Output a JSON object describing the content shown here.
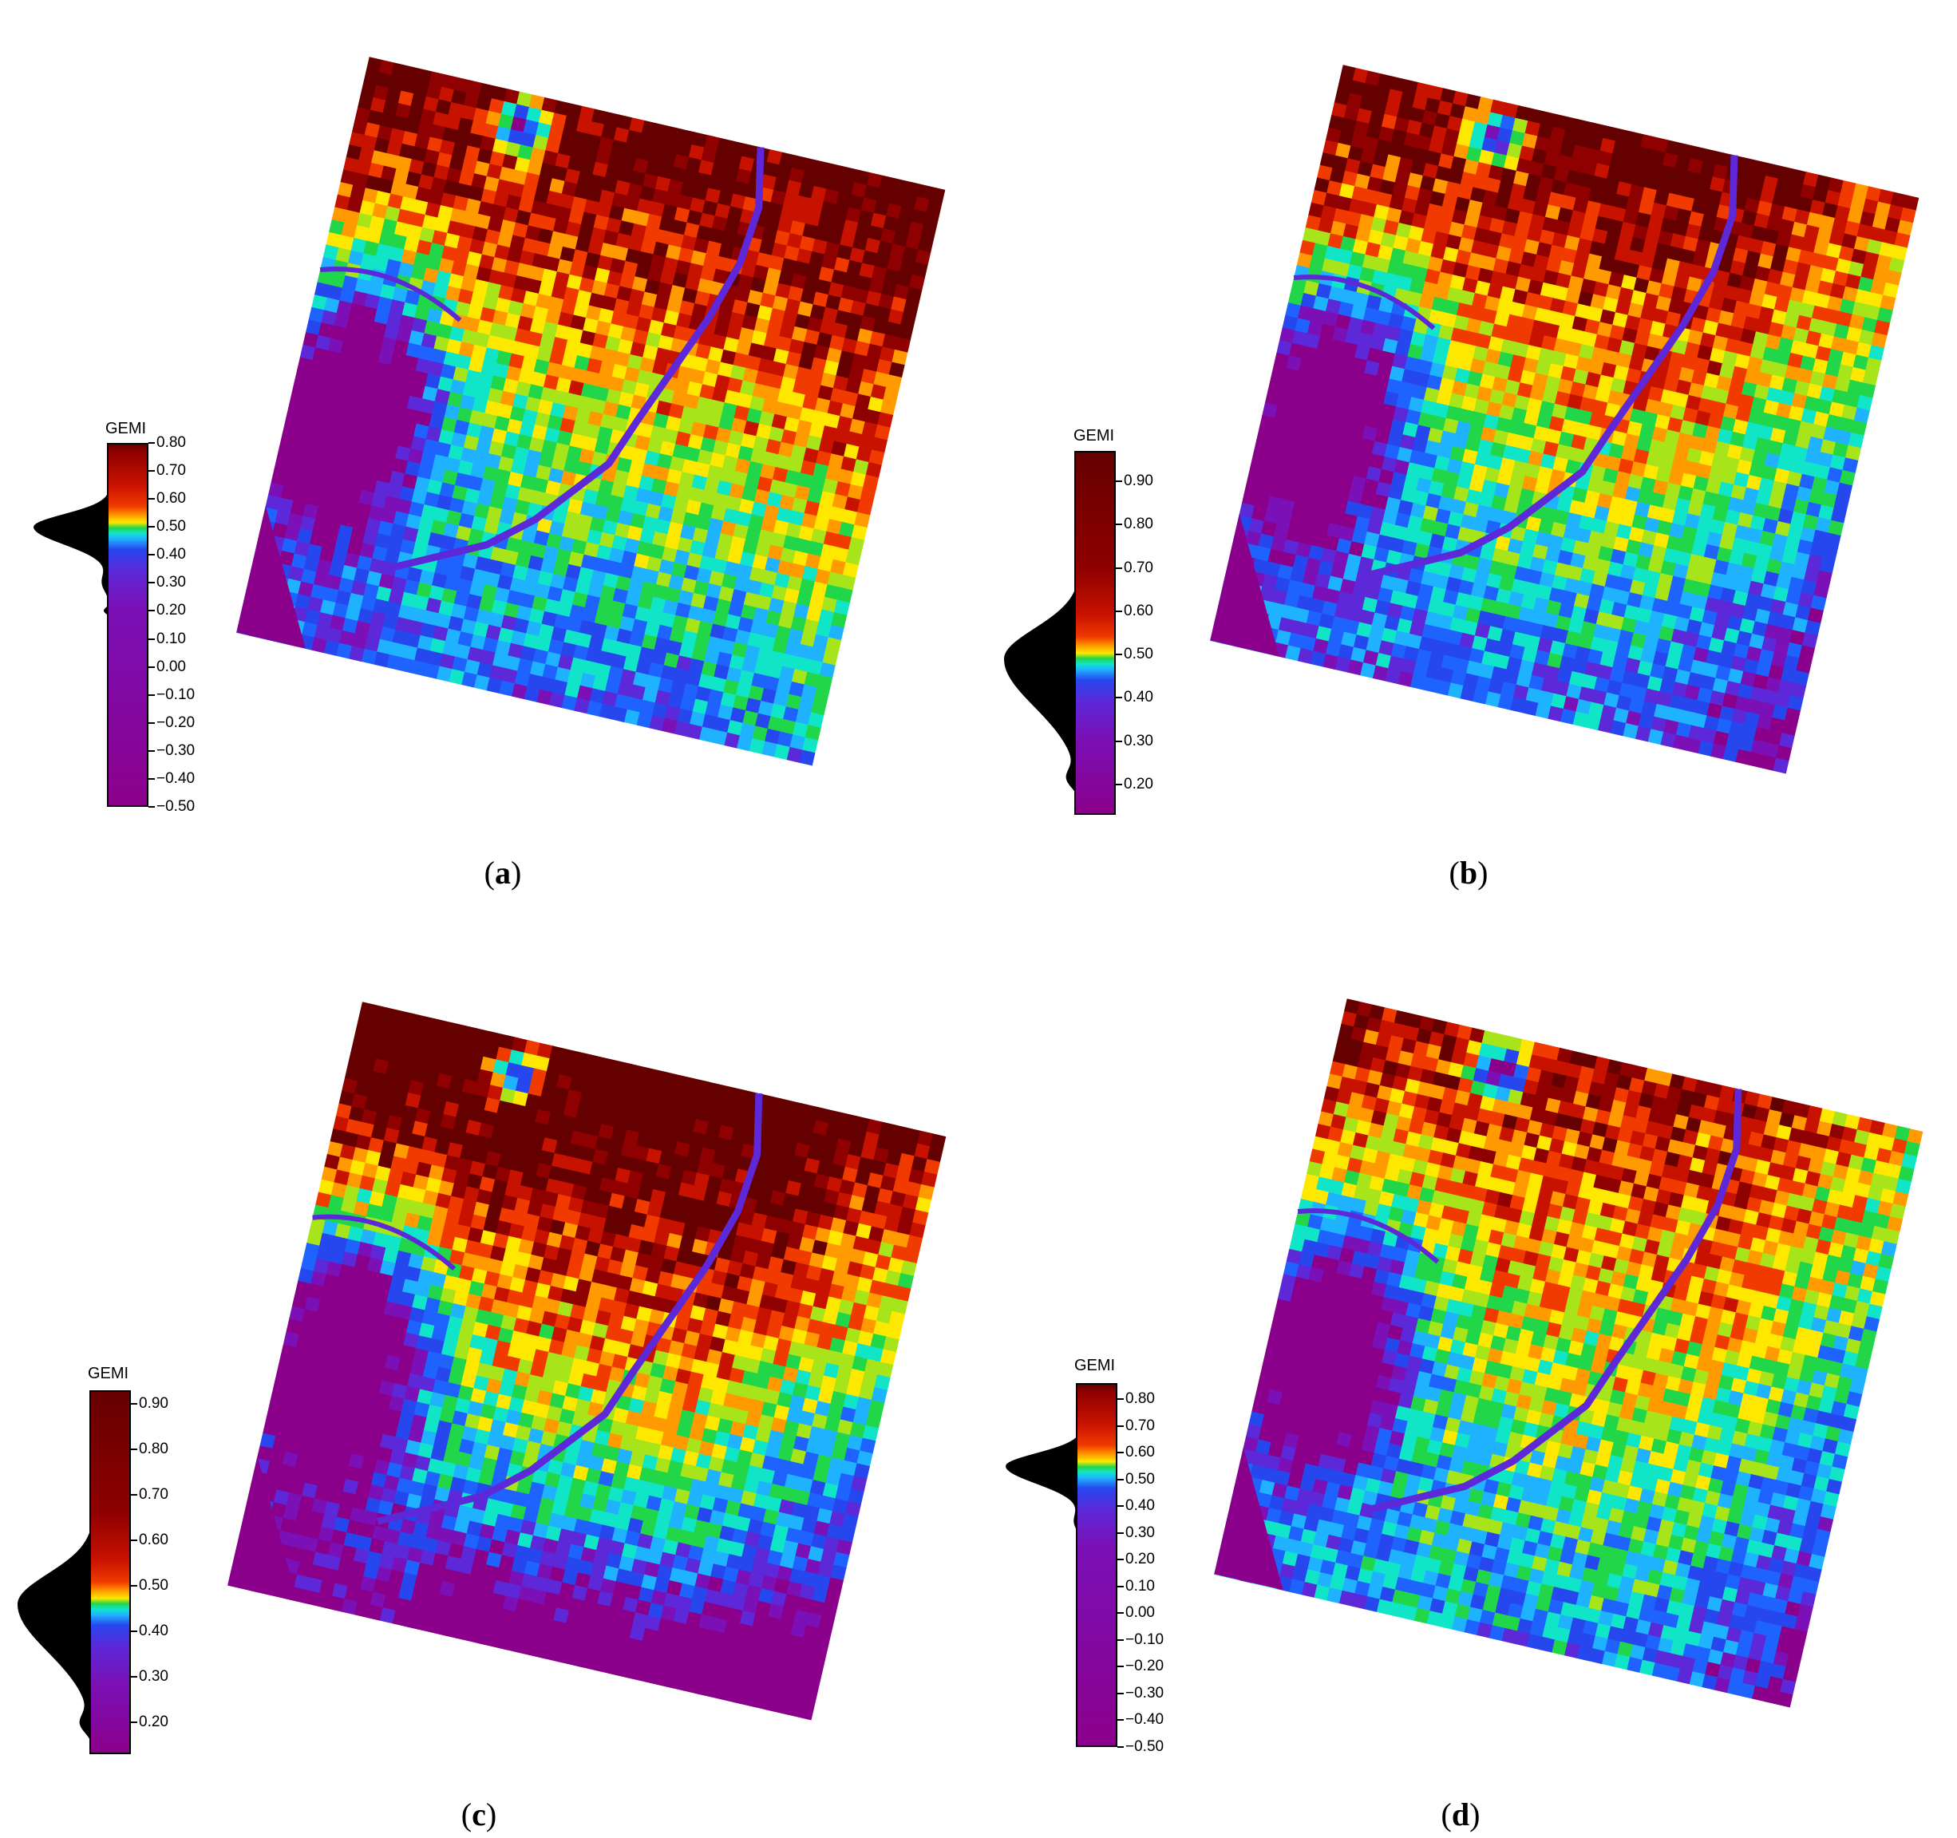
{
  "colormap": [
    "#8b008b",
    "#7a10b6",
    "#5c28d8",
    "#2747ee",
    "#1f63ff",
    "#1fb3ff",
    "#11e5c8",
    "#22d64a",
    "#a8e41a",
    "#ffe800",
    "#ff9a00",
    "#f03a00",
    "#c81200",
    "#8f0000",
    "#650000"
  ],
  "panels": [
    {
      "id": "a",
      "caption_letter": "a",
      "legend": {
        "title": "GEMI",
        "ticks": [
          "0.80",
          "0.70",
          "0.60",
          "0.50",
          "0.40",
          "0.30",
          "0.20",
          "0.10",
          "0.00",
          "−0.10",
          "−0.20",
          "−0.30",
          "−0.40",
          "−0.50"
        ],
        "min": -0.5,
        "max": 0.8
      },
      "histogram_peak_value": 0.5
    },
    {
      "id": "b",
      "caption_letter": "b",
      "legend": {
        "title": "GEMI",
        "ticks": [
          "0.90",
          "0.80",
          "0.70",
          "0.60",
          "0.50",
          "0.40",
          "0.30",
          "0.20"
        ],
        "min": 0.13,
        "max": 0.97
      },
      "histogram_peak_value": 0.49
    },
    {
      "id": "c",
      "caption_letter": "c",
      "legend": {
        "title": "GEMI",
        "ticks": [
          "0.90",
          "0.80",
          "0.70",
          "0.60",
          "0.50",
          "0.40",
          "0.30",
          "0.20"
        ],
        "min": 0.13,
        "max": 0.93
      },
      "histogram_peak_value": 0.46
    },
    {
      "id": "d",
      "caption_letter": "d",
      "legend": {
        "title": "GEMI",
        "ticks": [
          "0.80",
          "0.70",
          "0.60",
          "0.50",
          "0.40",
          "0.30",
          "0.20",
          "0.10",
          "0.00",
          "−0.10",
          "−0.20",
          "−0.30",
          "−0.40",
          "−0.50"
        ],
        "min": -0.5,
        "max": 0.86
      },
      "histogram_peak_value": 0.55
    }
  ]
}
